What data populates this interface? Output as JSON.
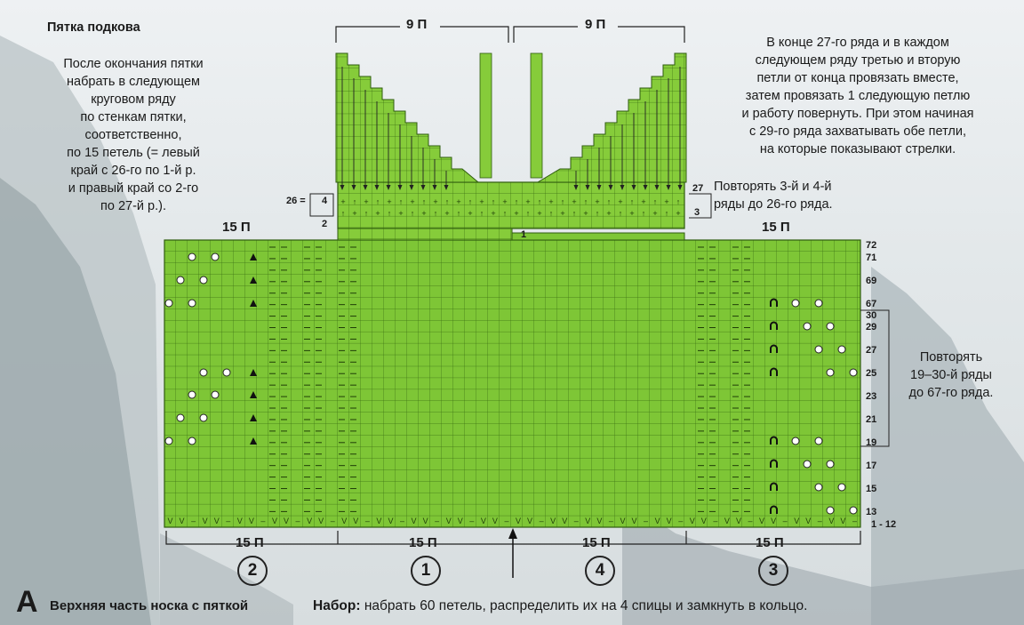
{
  "title": "Пятка подкова",
  "intro_lines": [
    "После окончания пятки",
    "набрать в следующем",
    "круговом ряду",
    "по стенкам пятки,",
    "соответственно,",
    "по 15 петель (= левый",
    "край с 26-го по 1-й р.",
    "и правый край со 2-го",
    "по 27-й р.)."
  ],
  "top_note_lines": [
    "В конце 27-го ряда и в каждом",
    "следующем ряду третью и вторую",
    "петли от конца провязать вместе,",
    "затем провязать 1 следующую петлю",
    "и работу повернуть. При этом начиная",
    "с 29-го ряда захватывать  обе петли,",
    "на которые показывают стрелки."
  ],
  "repeat_heel_lines": [
    "Повторять 3-й и 4-й",
    "ряды до 26-го ряда."
  ],
  "repeat_main_lines": [
    "Повторять",
    "19–30-й ряды",
    "до 67-го ряда."
  ],
  "heel_top_labels": [
    "9 П",
    "9 П"
  ],
  "heel_row_labels": {
    "left_26": "26 =",
    "left_4": "4",
    "left_2": "2",
    "right_27": "27",
    "right_3": "3",
    "center_1": "1"
  },
  "side_labels": {
    "left": "15 П",
    "right": "15 П"
  },
  "bottom_labels": [
    "15 П",
    "15 П",
    "15 П",
    "15 П"
  ],
  "needle_numbers": [
    "2",
    "1",
    "4",
    "3"
  ],
  "right_row_labels": [
    "72",
    "71",
    "69",
    "67",
    "29",
    "27",
    "25",
    "23",
    "21",
    "19",
    "17",
    "15",
    "13",
    "1 - 12"
  ],
  "inner_row_label": "30",
  "letter": "A",
  "caption": "Верхняя часть носка с пяткой",
  "nabor_label": "Набор:",
  "nabor_text": "набрать 60 петель, распределить их на 4 спицы и замкнуть в кольцо.",
  "colors": {
    "grid_green": "#7ec636",
    "grid_line": "#3a6e12",
    "heel_green": "#86cc3a"
  },
  "icons": [
    "yarn-over-circle-icon",
    "triangle-decrease-icon",
    "arch-stitch-icon",
    "slip-stitch-v-icon",
    "purl-dash-icon",
    "arrow-up-icon"
  ]
}
